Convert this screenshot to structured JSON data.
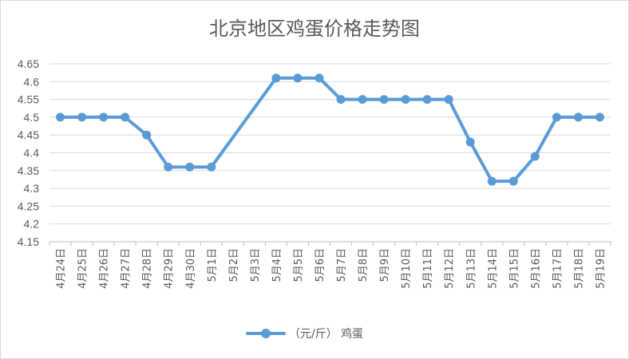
{
  "chart_data": {
    "type": "line",
    "title": "北京地区鸡蛋价格走势图",
    "xlabel": "",
    "ylabel": "",
    "ylim": [
      4.15,
      4.65
    ],
    "yticks": [
      4.15,
      4.2,
      4.25,
      4.3,
      4.35,
      4.4,
      4.45,
      4.5,
      4.55,
      4.6,
      4.65
    ],
    "ytick_labels": [
      "4.15",
      "4.2",
      "4.25",
      "4.3",
      "4.35",
      "4.4",
      "4.45",
      "4.5",
      "4.55",
      "4.6",
      "4.65"
    ],
    "categories": [
      "4月24日",
      "4月25日",
      "4月26日",
      "4月27日",
      "4月28日",
      "4月29日",
      "4月30日",
      "5月1日",
      "5月2日",
      "5月3日",
      "5月4日",
      "5月5日",
      "5月6日",
      "5月7日",
      "5月8日",
      "5月9日",
      "5月10日",
      "5月11日",
      "5月12日",
      "5月13日",
      "5月14日",
      "5月15日",
      "5月16日",
      "5月17日",
      "5月18日",
      "5月19日"
    ],
    "grid": true,
    "legend_position": "bottom",
    "series": [
      {
        "name": "（元/斤） 鸡蛋",
        "color": "#5b9bd5",
        "values": [
          4.5,
          4.5,
          4.5,
          4.5,
          4.45,
          4.36,
          4.36,
          4.36,
          null,
          null,
          4.61,
          4.61,
          4.61,
          4.55,
          4.55,
          4.55,
          4.55,
          4.55,
          4.55,
          4.43,
          4.32,
          4.32,
          4.39,
          4.5,
          4.5,
          4.5
        ]
      }
    ]
  }
}
